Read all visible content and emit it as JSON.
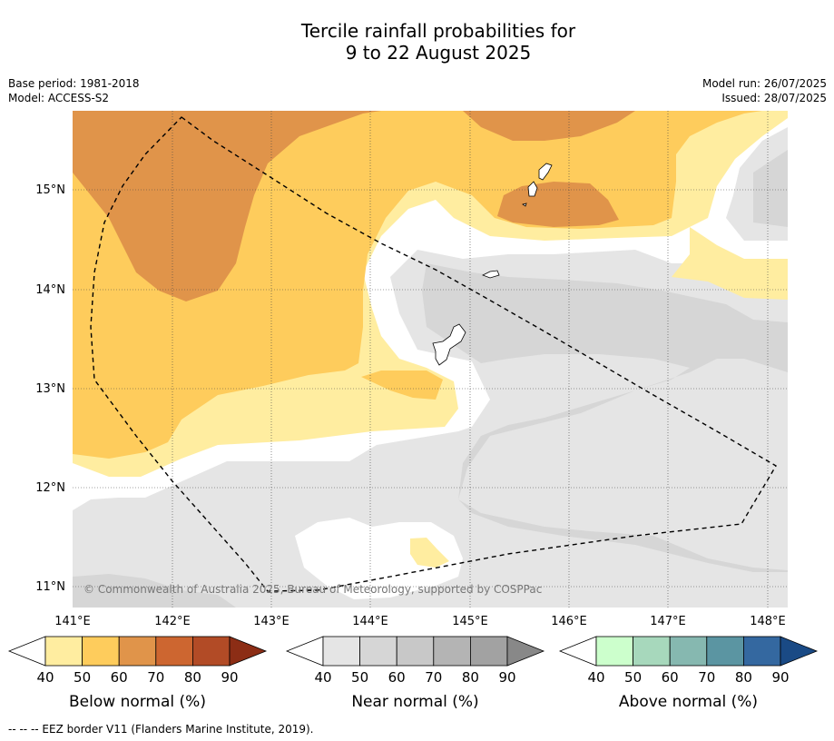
{
  "title": {
    "line1": "Tercile rainfall probabilities for",
    "line2": "9 to 22 August 2025"
  },
  "meta": {
    "base_period": "Base period: 1981-2018",
    "model": "Model: ACCESS-S2",
    "model_run": "Model run: 26/07/2025",
    "issued": "Issued: 28/07/2025"
  },
  "map": {
    "lat_labels": [
      "15°N",
      "14°N",
      "13°N",
      "12°N",
      "11°N"
    ],
    "lon_labels": [
      "141°E",
      "142°E",
      "143°E",
      "144°E",
      "145°E",
      "146°E",
      "147°E",
      "148°E"
    ],
    "copyright": "© Commonwealth of Australia 2025, Bureau of Meteorology, supported by COSPPac"
  },
  "colorbars": [
    {
      "name": "below",
      "title": "Below normal (%)",
      "ticks": [
        "40",
        "50",
        "60",
        "70",
        "80",
        "90"
      ],
      "colors": [
        "#ffffff",
        "#ffeda0",
        "#fecc5c",
        "#e0944a",
        "#cd6630",
        "#b24b26",
        "#8c2d15"
      ]
    },
    {
      "name": "near",
      "title": "Near normal (%)",
      "ticks": [
        "40",
        "50",
        "60",
        "70",
        "80",
        "90"
      ],
      "colors": [
        "#ffffff",
        "#e5e5e5",
        "#d6d6d6",
        "#c8c8c8",
        "#b4b4b4",
        "#a2a2a2",
        "#888888"
      ]
    },
    {
      "name": "above",
      "title": "Above normal (%)",
      "ticks": [
        "40",
        "50",
        "60",
        "70",
        "80",
        "90"
      ],
      "colors": [
        "#ffffff",
        "#ccffcc",
        "#a7d8bc",
        "#86b8b0",
        "#5b95a2",
        "#3468a0",
        "#1a4a85"
      ]
    }
  ],
  "footnote": "--  --  -- EEZ border V11 (Flanders Marine Institute, 2019)."
}
